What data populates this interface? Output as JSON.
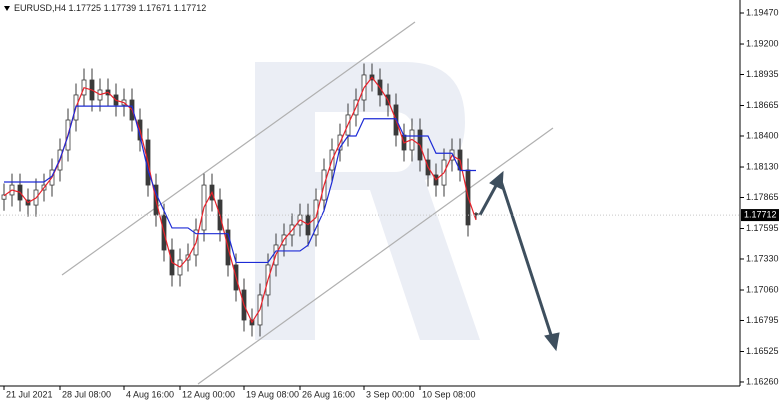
{
  "chart_data": {
    "type": "candlestick",
    "title": "EURUSD,H4",
    "categories": [
      "21 Jul 2021",
      null,
      null,
      null,
      null,
      null,
      null,
      "28 Jul 08:00",
      null,
      null,
      null,
      null,
      null,
      null,
      null,
      "4 Aug 16:00",
      null,
      null,
      null,
      null,
      null,
      null,
      "12 Aug 00:00",
      null,
      null,
      null,
      null,
      null,
      null,
      null,
      "19 Aug 08:00",
      null,
      null,
      null,
      null,
      null,
      null,
      "26 Aug 16:00",
      null,
      null,
      null,
      null,
      null,
      null,
      null,
      "3 Sep 00:00",
      null,
      null,
      null,
      null,
      null,
      null,
      "10 Sep 08:00",
      null,
      null,
      null,
      null,
      null,
      null,
      null
    ],
    "open": [
      1.1785,
      1.17887,
      1.17973,
      1.17843,
      1.17799,
      1.1793,
      1.17973,
      1.18104,
      1.18278,
      1.18539,
      1.18757,
      1.18887,
      1.18713,
      1.188,
      1.18757,
      1.1867,
      1.18713,
      1.18539,
      1.18365,
      1.17973,
      1.17712,
      1.17408,
      1.17191,
      1.17321,
      1.17365,
      1.17582,
      1.17973,
      1.17843,
      1.17582,
      1.17278,
      1.1706,
      1.16799,
      1.16756,
      1.17017,
      1.17278,
      1.17452,
      1.17539,
      1.17626,
      1.17712,
      1.17539,
      1.17843,
      1.18104,
      1.18278,
      1.18408,
      1.18583,
      1.18713,
      1.18931,
      1.18887,
      1.18757,
      1.1867,
      1.18408,
      1.18278,
      1.18452,
      1.18191,
      1.18061,
      1.17973,
      1.18191,
      1.18278,
      1.18104,
      1.17725
    ],
    "high": [
      1.17987,
      1.18073,
      1.18073,
      1.17943,
      1.1803,
      1.18073,
      1.18204,
      1.18378,
      1.18639,
      1.18857,
      1.18987,
      1.18987,
      1.189,
      1.189,
      1.18857,
      1.18813,
      1.18813,
      1.18639,
      1.18465,
      1.18073,
      1.17812,
      1.17508,
      1.17421,
      1.17465,
      1.17682,
      1.18073,
      1.18073,
      1.17943,
      1.17682,
      1.17378,
      1.1716,
      1.16899,
      1.17117,
      1.17378,
      1.17552,
      1.17639,
      1.17726,
      1.17812,
      1.17812,
      1.17943,
      1.18204,
      1.18378,
      1.18508,
      1.18683,
      1.18813,
      1.19031,
      1.19031,
      1.18987,
      1.18857,
      1.1877,
      1.18508,
      1.18552,
      1.18552,
      1.18291,
      1.18161,
      1.18291,
      1.18378,
      1.18378,
      1.18204,
      1.17739
    ],
    "low": [
      1.1775,
      1.17787,
      1.17743,
      1.17699,
      1.17699,
      1.1783,
      1.17873,
      1.18004,
      1.18178,
      1.18439,
      1.18657,
      1.18613,
      1.18613,
      1.18657,
      1.1857,
      1.1857,
      1.18439,
      1.18265,
      1.17873,
      1.17612,
      1.17308,
      1.17091,
      1.17091,
      1.17221,
      1.17265,
      1.17482,
      1.17743,
      1.17482,
      1.17178,
      1.1696,
      1.16699,
      1.16656,
      1.16656,
      1.16917,
      1.17178,
      1.17352,
      1.17439,
      1.17526,
      1.17439,
      1.17439,
      1.17743,
      1.18004,
      1.18178,
      1.18308,
      1.18483,
      1.18613,
      1.18787,
      1.18657,
      1.1857,
      1.18308,
      1.18178,
      1.18178,
      1.18091,
      1.17961,
      1.17873,
      1.17873,
      1.18091,
      1.18004,
      1.17526,
      1.17671
    ],
    "close": [
      1.17887,
      1.17973,
      1.17843,
      1.17799,
      1.1793,
      1.17973,
      1.18104,
      1.18278,
      1.18539,
      1.18757,
      1.18887,
      1.18713,
      1.188,
      1.18757,
      1.1867,
      1.18713,
      1.18539,
      1.18365,
      1.17973,
      1.17712,
      1.17408,
      1.17191,
      1.17321,
      1.17365,
      1.17582,
      1.17973,
      1.17843,
      1.17582,
      1.17278,
      1.1706,
      1.16799,
      1.16756,
      1.17017,
      1.17278,
      1.17452,
      1.17539,
      1.17626,
      1.17712,
      1.17539,
      1.17843,
      1.18104,
      1.18278,
      1.18408,
      1.18583,
      1.18713,
      1.18931,
      1.18887,
      1.18757,
      1.1867,
      1.18408,
      1.18278,
      1.18452,
      1.18191,
      1.18061,
      1.17973,
      1.18191,
      1.18278,
      1.18104,
      1.17626,
      1.17712
    ],
    "up_color": "#ffffff",
    "down_color": "#3a3a3a",
    "wick_color": "#3a3a3a",
    "lines": [
      {
        "color": "#e8212a",
        "values": [
          1.1788,
          1.1793,
          1.1791,
          1.1782,
          1.1786,
          1.1795,
          1.1804,
          1.1819,
          1.1841,
          1.1865,
          1.1882,
          1.188,
          1.1876,
          1.1878,
          1.1871,
          1.1869,
          1.1863,
          1.1845,
          1.1817,
          1.1784,
          1.1756,
          1.173,
          1.1726,
          1.1734,
          1.1747,
          1.1778,
          1.1791,
          1.1771,
          1.1743,
          1.1717,
          1.1693,
          1.1678,
          1.1689,
          1.1715,
          1.1737,
          1.175,
          1.1758,
          1.1767,
          1.1763,
          1.1769,
          1.1797,
          1.1819,
          1.1834,
          1.185,
          1.1865,
          1.1882,
          1.1891,
          1.1882,
          1.1871,
          1.1854,
          1.1834,
          1.1837,
          1.1832,
          1.1813,
          1.1802,
          1.1808,
          1.1823,
          1.1819,
          1.1787,
          1.1767
        ]
      },
      {
        "color": "#1d2bd6",
        "values": [
          1.18,
          1.18,
          1.18,
          1.18,
          1.18,
          1.18,
          1.1805,
          1.182,
          1.184,
          1.1866,
          1.1866,
          1.1866,
          1.1866,
          1.1866,
          1.1866,
          1.1866,
          1.1866,
          1.184,
          1.181,
          1.179,
          1.1775,
          1.176,
          1.176,
          1.176,
          1.1755,
          1.1755,
          1.1755,
          1.1755,
          1.1755,
          1.173,
          1.173,
          1.173,
          1.173,
          1.173,
          1.174,
          1.174,
          1.174,
          1.174,
          1.1745,
          1.176,
          1.1775,
          1.18,
          1.183,
          1.184,
          1.184,
          1.1855,
          1.1855,
          1.1855,
          1.1855,
          1.1855,
          1.184,
          1.184,
          1.184,
          1.184,
          1.1825,
          1.1825,
          1.1825,
          1.181,
          1.181,
          1.181
        ]
      }
    ],
    "ylim": [
      1.16225,
      1.19583
    ],
    "yticks": [
      {
        "value": 1.1947,
        "label": "1.19470"
      },
      {
        "value": 1.192,
        "label": "1.19200"
      },
      {
        "value": 1.18935,
        "label": "1.18935"
      },
      {
        "value": 1.18665,
        "label": "1.18665"
      },
      {
        "value": 1.184,
        "label": "1.18400"
      },
      {
        "value": 1.1813,
        "label": "1.18130"
      },
      {
        "value": 1.17865,
        "label": "1.17865"
      },
      {
        "value": 1.17595,
        "label": "1.17595"
      },
      {
        "value": 1.1733,
        "label": "1.17330"
      },
      {
        "value": 1.1706,
        "label": "1.17060"
      },
      {
        "value": 1.16795,
        "label": "1.16795"
      },
      {
        "value": 1.16525,
        "label": "1.16525"
      },
      {
        "value": 1.1626,
        "label": "1.16260"
      }
    ],
    "grid": false
  }
}
